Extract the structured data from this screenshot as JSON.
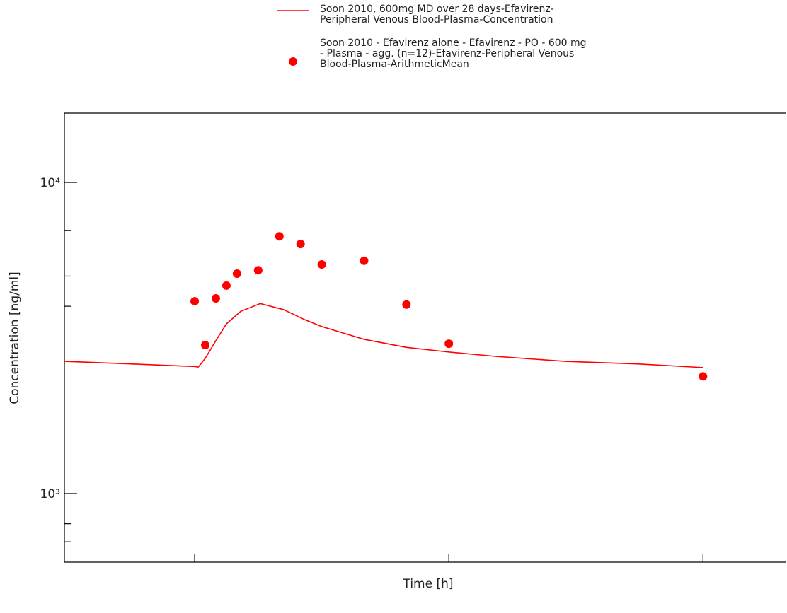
{
  "chart_data": {
    "type": "line",
    "x_label": "Time [h]",
    "y_label": "Concentration [ng/ml]",
    "ylog": true,
    "xlim": [
      -6.15,
      27.9
    ],
    "xticks": [
      0,
      12,
      24
    ],
    "ylim": [
      602,
      16700
    ],
    "yticks": [
      {
        "value": 1000,
        "label": "10³"
      },
      {
        "value": 10000,
        "label": "10⁴"
      }
    ],
    "yminorticks": [
      700,
      800,
      4000,
      5000,
      7000
    ],
    "series": [
      {
        "name": "Soon 2010, 600mg MD over 28 days-Efavirenz-Peripheral Venous Blood-Plasma-Concentration",
        "color": "#ff0000",
        "style": "line",
        "x": [
          -6.15,
          -3,
          0,
          0.17,
          0.5,
          1.0,
          1.5,
          2.17,
          3.1,
          4.2,
          5.2,
          6,
          8,
          10,
          12,
          14.2,
          17.5,
          20.9,
          24
        ],
        "values": [
          2660,
          2610,
          2560,
          2550,
          2720,
          3100,
          3510,
          3850,
          4080,
          3900,
          3620,
          3440,
          3130,
          2950,
          2850,
          2760,
          2660,
          2610,
          2540
        ]
      },
      {
        "name": "Soon 2010 - Efavirenz alone - Efavirenz - PO - 600 mg - Plasma - agg. (n=12)-Efavirenz-Peripheral Venous Blood-Plasma-ArithmeticMean",
        "color": "#ff0000",
        "style": "scatter",
        "x": [
          0,
          0.5,
          1.0,
          1.5,
          2.0,
          3.0,
          4.0,
          5.0,
          6.0,
          8.0,
          10.0,
          12,
          24
        ],
        "values": [
          4150,
          3000,
          4240,
          4660,
          5090,
          5220,
          6710,
          6340,
          5450,
          5600,
          4050,
          3030,
          2380
        ]
      }
    ]
  }
}
